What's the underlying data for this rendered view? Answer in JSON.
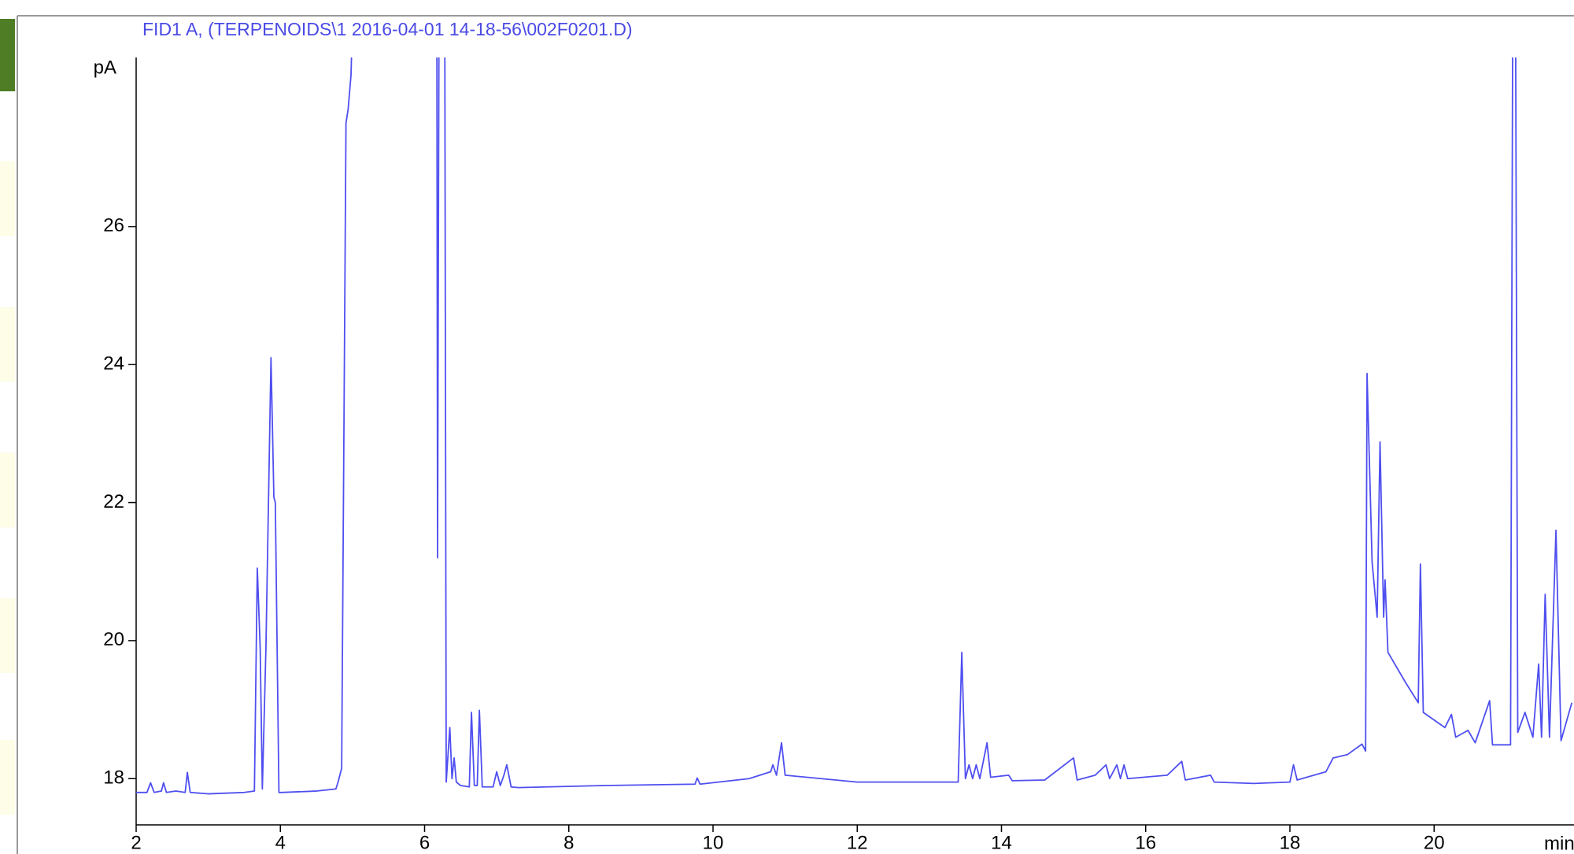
{
  "chart_data": {
    "type": "line",
    "title": "FID1 A,  (TERPENOIDS\\1 2016-04-01 14-18-56\\002F0201.D)",
    "y_label": "pA",
    "x_label": "min",
    "xlim": [
      2,
      21.94
    ],
    "ylim": [
      17.33,
      28.45
    ],
    "xticks": [
      2,
      4,
      6,
      8,
      10,
      12,
      14,
      16,
      18,
      20
    ],
    "yticks": [
      18,
      20,
      22,
      24,
      26
    ],
    "grid": false,
    "x": [
      2.0,
      2.15,
      2.2,
      2.25,
      2.35,
      2.38,
      2.42,
      2.55,
      2.68,
      2.71,
      2.75,
      3.0,
      3.5,
      3.64,
      3.68,
      3.72,
      3.75,
      3.8,
      3.87,
      3.91,
      3.93,
      3.98,
      4.02,
      4.5,
      4.77,
      4.8,
      4.85,
      4.91,
      4.94,
      4.98,
      5.0,
      6.17,
      6.18,
      6.2,
      6.24,
      6.28,
      6.3,
      6.35,
      6.38,
      6.41,
      6.44,
      6.5,
      6.62,
      6.65,
      6.69,
      6.73,
      6.76,
      6.8,
      6.95,
      7.0,
      7.05,
      7.1,
      7.14,
      7.2,
      7.3,
      8.5,
      9.75,
      9.78,
      9.82,
      10.5,
      10.8,
      10.83,
      10.88,
      10.95,
      11.0,
      12.0,
      13.0,
      13.4,
      13.45,
      13.5,
      13.55,
      13.6,
      13.65,
      13.7,
      13.8,
      13.85,
      14.1,
      14.15,
      14.6,
      15.0,
      15.05,
      15.3,
      15.45,
      15.5,
      15.6,
      15.65,
      15.7,
      15.75,
      16.3,
      16.5,
      16.55,
      16.9,
      16.95,
      17.5,
      18.0,
      18.05,
      18.1,
      18.5,
      18.6,
      18.8,
      19.0,
      19.05,
      19.07,
      19.14,
      19.21,
      19.25,
      19.3,
      19.32,
      19.36,
      19.6,
      19.78,
      19.81,
      19.85,
      20.15,
      20.24,
      20.3,
      20.47,
      20.57,
      20.77,
      20.81,
      21.06,
      21.09,
      21.13,
      21.16,
      21.26,
      21.37,
      21.45,
      21.49,
      21.54,
      21.6,
      21.69,
      21.76,
      21.91
    ],
    "series": [
      {
        "name": "FID1 A",
        "color": "#4f4ff0",
        "values": [
          17.8,
          17.8,
          17.94,
          17.8,
          17.82,
          17.94,
          17.8,
          17.82,
          17.8,
          18.09,
          17.8,
          17.78,
          17.8,
          17.82,
          21.05,
          19.9,
          17.85,
          19.9,
          24.1,
          22.08,
          22.0,
          17.8,
          17.8,
          17.82,
          17.85,
          17.95,
          18.15,
          27.5,
          27.7,
          28.2,
          29.0,
          29.0,
          21.2,
          29.0,
          29.0,
          29.0,
          17.95,
          18.74,
          18.0,
          18.3,
          17.95,
          17.9,
          17.88,
          18.96,
          17.9,
          17.9,
          18.99,
          17.88,
          17.88,
          18.1,
          17.9,
          18.05,
          18.2,
          17.88,
          17.87,
          17.9,
          17.92,
          18.01,
          17.92,
          18.0,
          18.1,
          18.2,
          18.05,
          18.52,
          18.05,
          17.95,
          17.95,
          17.95,
          19.83,
          18.0,
          18.2,
          18.0,
          18.2,
          18.0,
          18.52,
          18.02,
          18.05,
          17.97,
          17.98,
          18.3,
          17.98,
          18.05,
          18.2,
          18.0,
          18.2,
          18.0,
          18.2,
          18.0,
          18.05,
          18.25,
          17.98,
          18.05,
          17.95,
          17.93,
          17.95,
          18.2,
          17.98,
          18.1,
          18.3,
          18.35,
          18.5,
          18.4,
          23.87,
          21.14,
          20.34,
          22.88,
          20.34,
          20.88,
          19.83,
          19.4,
          19.1,
          21.11,
          18.96,
          18.74,
          18.93,
          18.6,
          18.7,
          18.52,
          19.13,
          18.49,
          18.49,
          29.0,
          29.0,
          18.67,
          18.96,
          18.6,
          19.66,
          18.6,
          20.67,
          18.6,
          21.6,
          18.55,
          19.1
        ]
      }
    ]
  }
}
